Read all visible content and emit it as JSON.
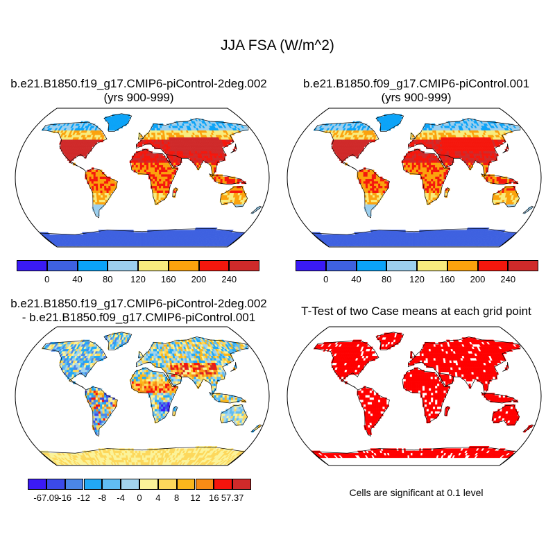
{
  "main_title": "JJA FSA (W/m^2)",
  "panels": {
    "top_left": {
      "title_line1": "b.e21.B1850.f19_g17.CMIP6-piControl-2deg.002",
      "title_line2": "(yrs 900-999)"
    },
    "top_right": {
      "title_line1": "b.e21.B1850.f09_g17.CMIP6-piControl.001",
      "title_line2": "(yrs 900-999)"
    },
    "bottom_left": {
      "title_line1": "b.e21.B1850.f19_g17.CMIP6-piControl-2deg.002",
      "title_line2": "- b.e21.B1850.f09_g17.CMIP6-piControl.001"
    },
    "bottom_right": {
      "title_line1": "T-Test of two Case means at each grid point",
      "note": "Cells are significant at 0.1 level"
    }
  },
  "colorbars": {
    "abs": {
      "colors": [
        "#3a1af5",
        "#3e61e0",
        "#0ba3f8",
        "#9ccfee",
        "#f8ec7e",
        "#fba20d",
        "#f5170d",
        "#cf2a2a"
      ],
      "labels": [
        "0",
        "40",
        "80",
        "120",
        "160",
        "200",
        "240"
      ]
    },
    "diff": {
      "colors": [
        "#3b1af5",
        "#3b4ae8",
        "#4b86e6",
        "#22a8f5",
        "#61bdf3",
        "#a3d4ee",
        "#fbf39a",
        "#fdd85c",
        "#fbb71c",
        "#f88b15",
        "#f5140d",
        "#d02a2a"
      ],
      "labels": [
        "-67.09",
        "-16",
        "-12",
        "-8",
        "-4",
        "0",
        "4",
        "8",
        "12",
        "16",
        "57.37"
      ]
    }
  }
}
